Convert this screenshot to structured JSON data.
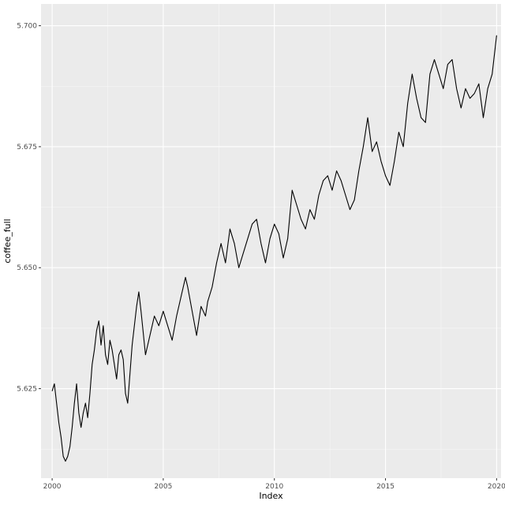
{
  "chart_data": {
    "type": "line",
    "title": "",
    "xlabel": "Index",
    "ylabel": "coffee_full",
    "xlim": [
      1999.5,
      2020.2
    ],
    "ylim": [
      5.6065,
      5.7045
    ],
    "x_ticks": [
      2000,
      2005,
      2010,
      2015,
      2020
    ],
    "x_tick_labels": [
      "2000",
      "2005",
      "2010",
      "2015",
      "2020"
    ],
    "y_ticks": [
      5.625,
      5.65,
      5.675,
      5.7
    ],
    "y_tick_labels": [
      "5.625",
      "5.650",
      "5.675",
      "5.700"
    ],
    "grid": true,
    "legend": "none",
    "series": [
      {
        "color": "#000000",
        "x": [
          2000.0,
          2000.1,
          2000.2,
          2000.3,
          2000.4,
          2000.5,
          2000.6,
          2000.7,
          2000.8,
          2000.9,
          2001.0,
          2001.1,
          2001.2,
          2001.3,
          2001.4,
          2001.5,
          2001.6,
          2001.7,
          2001.8,
          2001.9,
          2002.0,
          2002.1,
          2002.2,
          2002.3,
          2002.4,
          2002.5,
          2002.6,
          2002.7,
          2002.8,
          2002.9,
          2003.0,
          2003.1,
          2003.2,
          2003.3,
          2003.4,
          2003.5,
          2003.6,
          2003.7,
          2003.8,
          2003.9,
          2004.0,
          2004.2,
          2004.4,
          2004.6,
          2004.8,
          2005.0,
          2005.2,
          2005.4,
          2005.6,
          2005.8,
          2006.0,
          2006.1,
          2006.3,
          2006.5,
          2006.7,
          2006.9,
          2007.0,
          2007.2,
          2007.4,
          2007.6,
          2007.8,
          2008.0,
          2008.2,
          2008.4,
          2008.6,
          2008.8,
          2009.0,
          2009.2,
          2009.4,
          2009.6,
          2009.8,
          2010.0,
          2010.2,
          2010.4,
          2010.6,
          2010.8,
          2011.0,
          2011.2,
          2011.4,
          2011.6,
          2011.8,
          2012.0,
          2012.2,
          2012.4,
          2012.6,
          2012.8,
          2013.0,
          2013.2,
          2013.4,
          2013.6,
          2013.8,
          2014.0,
          2014.2,
          2014.4,
          2014.6,
          2014.8,
          2015.0,
          2015.2,
          2015.4,
          2015.6,
          2015.8,
          2016.0,
          2016.2,
          2016.4,
          2016.6,
          2016.8,
          2017.0,
          2017.2,
          2017.4,
          2017.6,
          2017.8,
          2018.0,
          2018.2,
          2018.4,
          2018.6,
          2018.8,
          2019.0,
          2019.2,
          2019.4,
          2019.6,
          2019.8,
          2020.0
        ],
        "y": [
          5.6245,
          5.626,
          5.622,
          5.618,
          5.615,
          5.611,
          5.61,
          5.611,
          5.613,
          5.617,
          5.622,
          5.626,
          5.62,
          5.617,
          5.62,
          5.622,
          5.619,
          5.624,
          5.63,
          5.633,
          5.637,
          5.639,
          5.634,
          5.638,
          5.632,
          5.63,
          5.635,
          5.633,
          5.63,
          5.627,
          5.632,
          5.633,
          5.631,
          5.624,
          5.622,
          5.628,
          5.634,
          5.638,
          5.642,
          5.645,
          5.641,
          5.632,
          5.636,
          5.64,
          5.638,
          5.641,
          5.638,
          5.635,
          5.64,
          5.644,
          5.648,
          5.646,
          5.641,
          5.636,
          5.642,
          5.64,
          5.643,
          5.646,
          5.651,
          5.655,
          5.651,
          5.658,
          5.655,
          5.65,
          5.653,
          5.656,
          5.659,
          5.66,
          5.655,
          5.651,
          5.656,
          5.659,
          5.657,
          5.652,
          5.656,
          5.666,
          5.663,
          5.66,
          5.658,
          5.662,
          5.66,
          5.665,
          5.668,
          5.669,
          5.666,
          5.67,
          5.668,
          5.665,
          5.662,
          5.664,
          5.67,
          5.675,
          5.681,
          5.674,
          5.676,
          5.672,
          5.669,
          5.667,
          5.672,
          5.678,
          5.675,
          5.684,
          5.69,
          5.685,
          5.681,
          5.68,
          5.69,
          5.693,
          5.69,
          5.687,
          5.692,
          5.693,
          5.687,
          5.683,
          5.687,
          5.685,
          5.686,
          5.688,
          5.681,
          5.687,
          5.69,
          5.698
        ]
      }
    ]
  }
}
